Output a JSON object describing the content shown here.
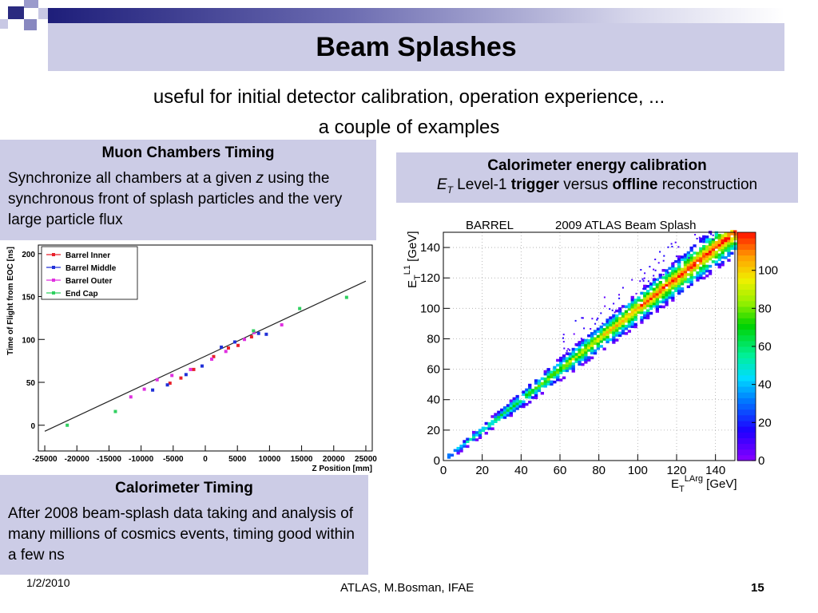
{
  "slide": {
    "title": "Beam Splashes",
    "subtitle_line1": "useful for initial detector calibration, operation experience, ...",
    "subtitle_line2": "a couple of examples"
  },
  "muon_box": {
    "header": "Muon Chambers Timing",
    "text_before_z": "Synchronize all chambers at a given ",
    "z": "z",
    "text_after_z": " using the synchronous front of splash particles and the very large particle flux"
  },
  "calo_energy_box": {
    "header": "Calorimeter energy calibration",
    "et": "E",
    "et_sub": "T",
    "t1": " Level-1 ",
    "trigger": "trigger",
    "t2": " versus ",
    "offline": "offline",
    "t3": " reconstruction"
  },
  "calo_timing_box": {
    "header": "Calorimeter Timing",
    "text": "After 2008 beam-splash data taking and analysis of many millions of cosmics events, timing good within a few ns"
  },
  "footer": {
    "date": "1/2/2010",
    "center": "ATLAS, M.Bosman, IFAE",
    "page": "15"
  },
  "chart_data": [
    {
      "type": "scatter",
      "xlabel": "Z Position [mm]",
      "ylabel": "Time of Flight from EOC [ns]",
      "xlim": [
        -26000,
        26000
      ],
      "ylim": [
        -30,
        210
      ],
      "x_ticks": [
        -25000,
        -20000,
        -15000,
        -10000,
        -5000,
        0,
        5000,
        10000,
        15000,
        20000,
        25000
      ],
      "x_tick_labels": [
        "-25000",
        "-20000",
        "-15000",
        "-10000",
        "-5000",
        "0",
        "5000",
        "10000",
        "15000",
        "20000",
        "25000"
      ],
      "y_ticks": [
        0,
        50,
        100,
        150,
        200
      ],
      "y_tick_labels": [
        "0",
        "50",
        "100",
        "150",
        "200"
      ],
      "fit_line": {
        "x": [
          -25000,
          25000
        ],
        "y": [
          -7,
          168
        ]
      },
      "series": [
        {
          "name": "Barrel Inner",
          "color": "#e8202a",
          "points": [
            [
              -5500,
              49
            ],
            [
              -3800,
              55
            ],
            [
              -1800,
              65
            ],
            [
              1300,
              80
            ],
            [
              3600,
              90
            ],
            [
              5100,
              93
            ],
            [
              7200,
              103
            ]
          ]
        },
        {
          "name": "Barrel Middle",
          "color": "#2030d8",
          "points": [
            [
              -8200,
              41
            ],
            [
              -5900,
              47
            ],
            [
              -3000,
              59
            ],
            [
              -500,
              69
            ],
            [
              2500,
              91
            ],
            [
              4600,
              97
            ],
            [
              8300,
              107
            ],
            [
              9500,
              106
            ]
          ]
        },
        {
          "name": "Barrel Outer",
          "color": "#e030e0",
          "points": [
            [
              -11600,
              33
            ],
            [
              -9500,
              42
            ],
            [
              -7500,
              53
            ],
            [
              -5200,
              58
            ],
            [
              -2300,
              65
            ],
            [
              1000,
              77
            ],
            [
              3200,
              86
            ],
            [
              6100,
              100
            ],
            [
              7600,
              108
            ],
            [
              11900,
              117
            ]
          ]
        },
        {
          "name": "End Cap",
          "color": "#30d060",
          "points": [
            [
              -21500,
              0
            ],
            [
              -14000,
              16
            ],
            [
              7500,
              110
            ],
            [
              14700,
              136
            ],
            [
              22000,
              149
            ]
          ]
        }
      ]
    },
    {
      "type": "heatmap",
      "title_left": "BARREL",
      "title_right": "2009 ATLAS Beam Splash",
      "xlabel_main": "E",
      "xlabel_sub": "T",
      "xlabel_sup": "LArg",
      "xlabel_unit": "[GeV]",
      "ylabel_main": "E",
      "ylabel_sub": "T",
      "ylabel_sup": "L1",
      "ylabel_unit": "[GeV]",
      "xlim": [
        0,
        150
      ],
      "ylim": [
        0,
        150
      ],
      "x_ticks": [
        0,
        20,
        40,
        60,
        80,
        100,
        120,
        140
      ],
      "x_tick_labels": [
        "0",
        "20",
        "40",
        "60",
        "80",
        "100",
        "120",
        "140"
      ],
      "y_ticks": [
        0,
        20,
        40,
        60,
        80,
        100,
        120,
        140
      ],
      "y_tick_labels": [
        "0",
        "20",
        "40",
        "60",
        "80",
        "100",
        "120",
        "140"
      ],
      "z_ticks": [
        0,
        20,
        40,
        60,
        80,
        100
      ],
      "z_tick_labels": [
        "0",
        "20",
        "40",
        "60",
        "80",
        "100"
      ],
      "zlim": [
        0,
        120
      ],
      "ridge": {
        "slope": 1.0,
        "intercept": 0
      }
    }
  ]
}
